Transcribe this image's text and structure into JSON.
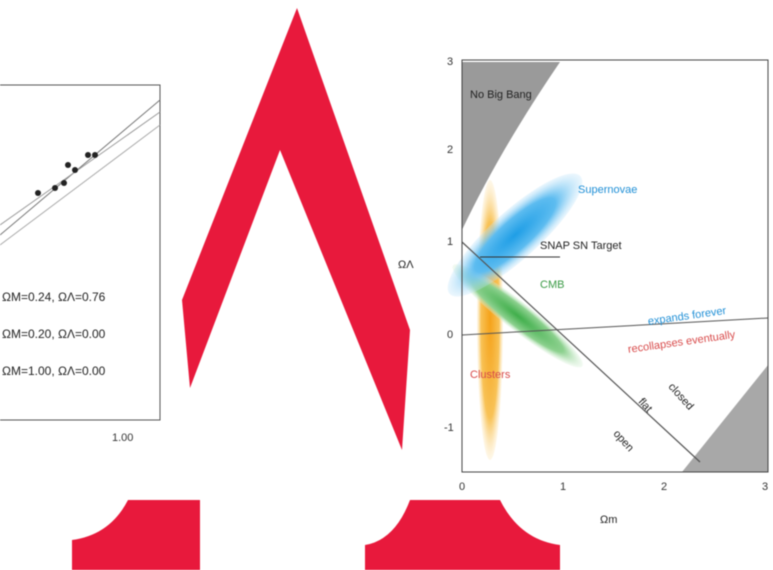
{
  "left_plot": {
    "legend": [
      "ΩM=0.24, ΩΛ=0.76",
      "ΩM=0.20, ΩΛ=0.00",
      "ΩM=1.00, ΩΛ=0.00"
    ],
    "x_tick": "1.00"
  },
  "right_plot": {
    "y_label": "ΩΛ",
    "x_label": "Ωm",
    "y_ticks": [
      "3",
      "2",
      "1",
      "0",
      "-1"
    ],
    "x_ticks": [
      "0",
      "1",
      "2",
      "3"
    ],
    "regions": {
      "no_big_bang": "No Big Bang",
      "supernovae": "Supernovae",
      "snap": "SNAP SN Target",
      "cmb": "CMB",
      "clusters": "Clusters"
    },
    "lines": {
      "expands": "expands forever",
      "recollapses": "recollapses eventually",
      "closed": "closed",
      "flat": "flat",
      "open": "open"
    }
  }
}
